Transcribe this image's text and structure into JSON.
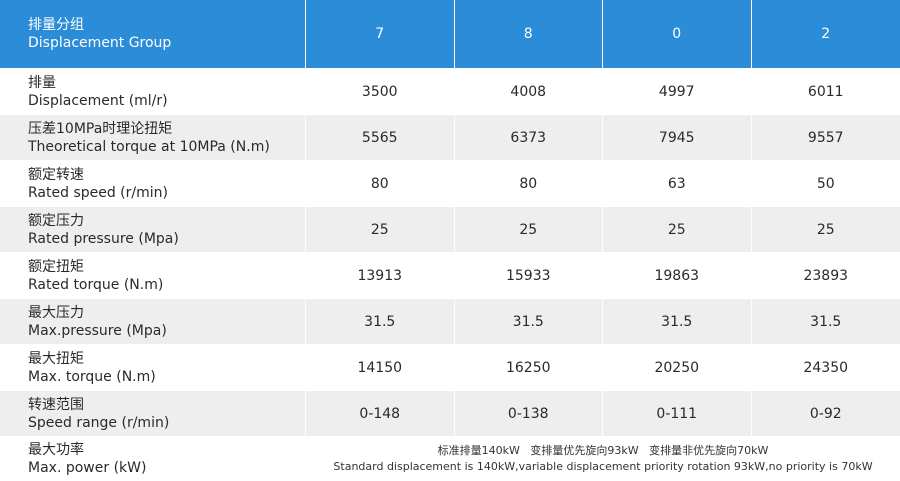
{
  "header": {
    "label_cn": "排量分组",
    "label_en": "Displacement Group",
    "groups": [
      "7",
      "8",
      "0",
      "2"
    ]
  },
  "rows": [
    {
      "label_cn": "排量",
      "label_en": "Displacement (ml/r)",
      "values": [
        "3500",
        "4008",
        "4997",
        "6011"
      ]
    },
    {
      "label_cn": "压差10MPa时理论扭矩",
      "label_en": "Theoretical torque at 10MPa (N.m)",
      "values": [
        "5565",
        "6373",
        "7945",
        "9557"
      ]
    },
    {
      "label_cn": "额定转速",
      "label_en": "Rated speed (r/min)",
      "values": [
        "80",
        "80",
        "63",
        "50"
      ]
    },
    {
      "label_cn": "额定压力",
      "label_en": "Rated pressure (Mpa)",
      "values": [
        "25",
        "25",
        "25",
        "25"
      ]
    },
    {
      "label_cn": "额定扭矩",
      "label_en": "Rated torque (N.m)",
      "values": [
        "13913",
        "15933",
        "19863",
        "23893"
      ]
    },
    {
      "label_cn": "最大压力",
      "label_en": "Max.pressure (Mpa)",
      "values": [
        "31.5",
        "31.5",
        "31.5",
        "31.5"
      ]
    },
    {
      "label_cn": "最大扭矩",
      "label_en": "Max. torque (N.m)",
      "values": [
        "14150",
        "16250",
        "20250",
        "24350"
      ]
    },
    {
      "label_cn": "转速范围",
      "label_en": "Speed range (r/min)",
      "values": [
        "0-148",
        "0-138",
        "0-111",
        "0-92"
      ]
    }
  ],
  "power": {
    "label_cn": "最大功率",
    "label_en": "Max. power (kW)",
    "note_cn": "标准排量140kW   变排量优先旋向93kW   变排量非优先旋向70kW",
    "note_en": "Standard displacement is 140kW,variable displacement priority rotation 93kW,no priority is 70kW"
  },
  "colors": {
    "header_bg": "#2b8cd8",
    "stripe": "#eeeeee"
  }
}
